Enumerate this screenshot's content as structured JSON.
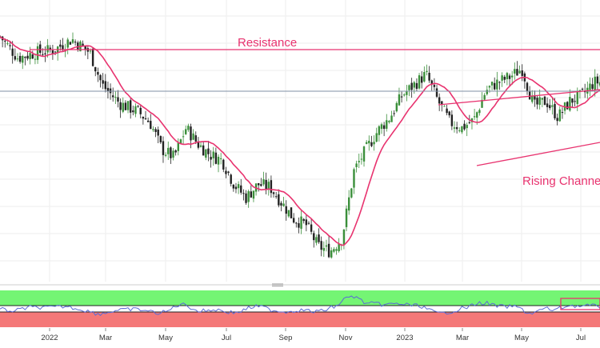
{
  "chart_data": [
    {
      "type": "candlestick",
      "title": "",
      "xlabel": "",
      "ylabel": "",
      "x_tick_labels": [
        "2022",
        "Mar",
        "May",
        "Jul",
        "Sep",
        "Nov",
        "2023",
        "Mar",
        "May",
        "Jul"
      ],
      "y_range_relative": [
        0,
        100
      ],
      "close_series_relative": [
        [
          0.0,
          90
        ],
        [
          0.03,
          82
        ],
        [
          0.06,
          84
        ],
        [
          0.09,
          85
        ],
        [
          0.12,
          89
        ],
        [
          0.15,
          84
        ],
        [
          0.17,
          72
        ],
        [
          0.2,
          65
        ],
        [
          0.23,
          62
        ],
        [
          0.25,
          58
        ],
        [
          0.27,
          48
        ],
        [
          0.29,
          45
        ],
        [
          0.31,
          56
        ],
        [
          0.33,
          50
        ],
        [
          0.35,
          46
        ],
        [
          0.37,
          44
        ],
        [
          0.39,
          35
        ],
        [
          0.41,
          30
        ],
        [
          0.43,
          35
        ],
        [
          0.45,
          34
        ],
        [
          0.47,
          28
        ],
        [
          0.49,
          22
        ],
        [
          0.51,
          20
        ],
        [
          0.53,
          12
        ],
        [
          0.55,
          10
        ],
        [
          0.57,
          15
        ],
        [
          0.59,
          40
        ],
        [
          0.61,
          48
        ],
        [
          0.63,
          55
        ],
        [
          0.65,
          60
        ],
        [
          0.67,
          68
        ],
        [
          0.69,
          72
        ],
        [
          0.71,
          76
        ],
        [
          0.73,
          66
        ],
        [
          0.75,
          58
        ],
        [
          0.77,
          56
        ],
        [
          0.79,
          59
        ],
        [
          0.81,
          70
        ],
        [
          0.83,
          73
        ],
        [
          0.85,
          75
        ],
        [
          0.87,
          78
        ],
        [
          0.89,
          64
        ],
        [
          0.91,
          66
        ],
        [
          0.93,
          60
        ],
        [
          0.95,
          66
        ],
        [
          0.97,
          68
        ],
        [
          0.99,
          73
        ]
      ],
      "series": [
        {
          "name": "",
          "kind": "moving-average",
          "color": "#e8336f"
        },
        {
          "name": "",
          "kind": "rsi",
          "color": "#5a6bd6"
        }
      ],
      "annotations": [
        {
          "label": "Resistance",
          "kind": "horizontal-line",
          "color": "#e8336f"
        },
        {
          "label": "Rising Channel",
          "kind": "channel",
          "color": "#e8336f"
        },
        {
          "label": "",
          "kind": "horizontal-line",
          "color": "#7f8fa6"
        }
      ],
      "colors": {
        "up": "#3a8f3a",
        "down": "#222222",
        "ma": "#e8336f",
        "rsi": "#5a6bd6",
        "rsi_upper_zone": "#74f574",
        "rsi_lower_zone": "#f47878"
      },
      "grid": true
    }
  ]
}
